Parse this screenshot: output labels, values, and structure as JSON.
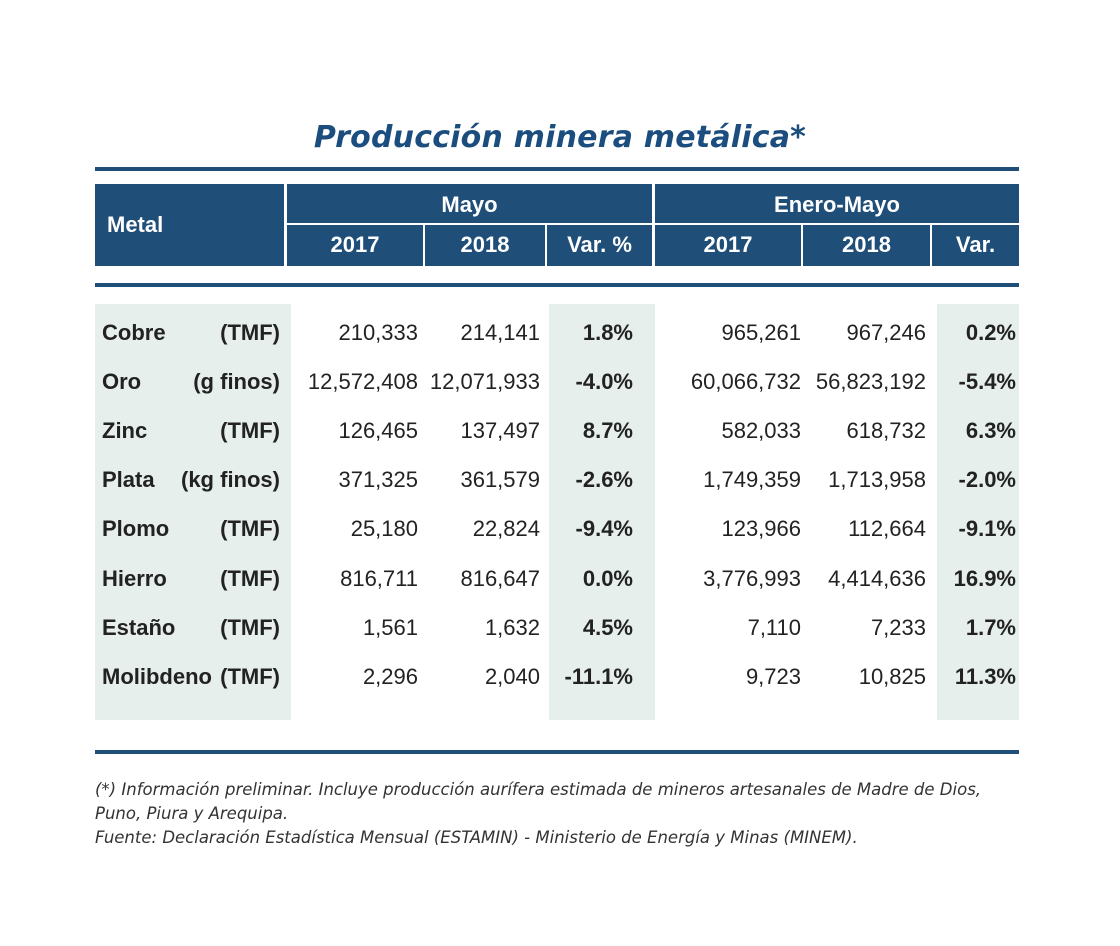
{
  "title": "Producción minera metálica*",
  "header": {
    "metal": "Metal",
    "group1": "Mayo",
    "group2": "Enero-Mayo",
    "sub1": [
      "2017",
      "2018",
      "Var. %"
    ],
    "sub2": [
      "2017",
      "2018",
      "Var."
    ]
  },
  "rows": [
    {
      "metal": "Cobre",
      "unit": "(TMF)",
      "may2017": "210,333",
      "may2018": "214,141",
      "may_var": "1.8%",
      "ytd2017": "965,261",
      "ytd2018": "967,246",
      "ytd_var": "0.2%"
    },
    {
      "metal": "Oro",
      "unit": "(g finos)",
      "may2017": "12,572,408",
      "may2018": "12,071,933",
      "may_var": "-4.0%",
      "ytd2017": "60,066,732",
      "ytd2018": "56,823,192",
      "ytd_var": "-5.4%"
    },
    {
      "metal": "Zinc",
      "unit": "(TMF)",
      "may2017": "126,465",
      "may2018": "137,497",
      "may_var": "8.7%",
      "ytd2017": "582,033",
      "ytd2018": "618,732",
      "ytd_var": "6.3%"
    },
    {
      "metal": "Plata",
      "unit": "(kg finos)",
      "may2017": "371,325",
      "may2018": "361,579",
      "may_var": "-2.6%",
      "ytd2017": "1,749,359",
      "ytd2018": "1,713,958",
      "ytd_var": "-2.0%"
    },
    {
      "metal": "Plomo",
      "unit": "(TMF)",
      "may2017": "25,180",
      "may2018": "22,824",
      "may_var": "-9.4%",
      "ytd2017": "123,966",
      "ytd2018": "112,664",
      "ytd_var": "-9.1%"
    },
    {
      "metal": "Hierro",
      "unit": "(TMF)",
      "may2017": "816,711",
      "may2018": "816,647",
      "may_var": "0.0%",
      "ytd2017": "3,776,993",
      "ytd2018": "4,414,636",
      "ytd_var": "16.9%"
    },
    {
      "metal": "Estaño",
      "unit": "(TMF)",
      "may2017": "1,561",
      "may2018": "1,632",
      "may_var": "4.5%",
      "ytd2017": "7,110",
      "ytd2018": "7,233",
      "ytd_var": "1.7%"
    },
    {
      "metal": "Molibdeno",
      "unit": "(TMF)",
      "may2017": "2,296",
      "may2018": "2,040",
      "may_var": "-11.1%",
      "ytd2017": "9,723",
      "ytd2018": "10,825",
      "ytd_var": "11.3%"
    }
  ],
  "notes": [
    "(*) Información preliminar. Incluye producción aurífera estimada de mineros artesanales de Madre de Dios,",
    "Puno, Piura y Arequipa.",
    "Fuente: Declaración Estadística Mensual (ESTAMIN) - Ministerio de Energía y Minas (MINEM)."
  ],
  "colors": {
    "header_bg": "#1f4e79",
    "title": "#1b4e7e",
    "shade": "#e6efeb"
  }
}
